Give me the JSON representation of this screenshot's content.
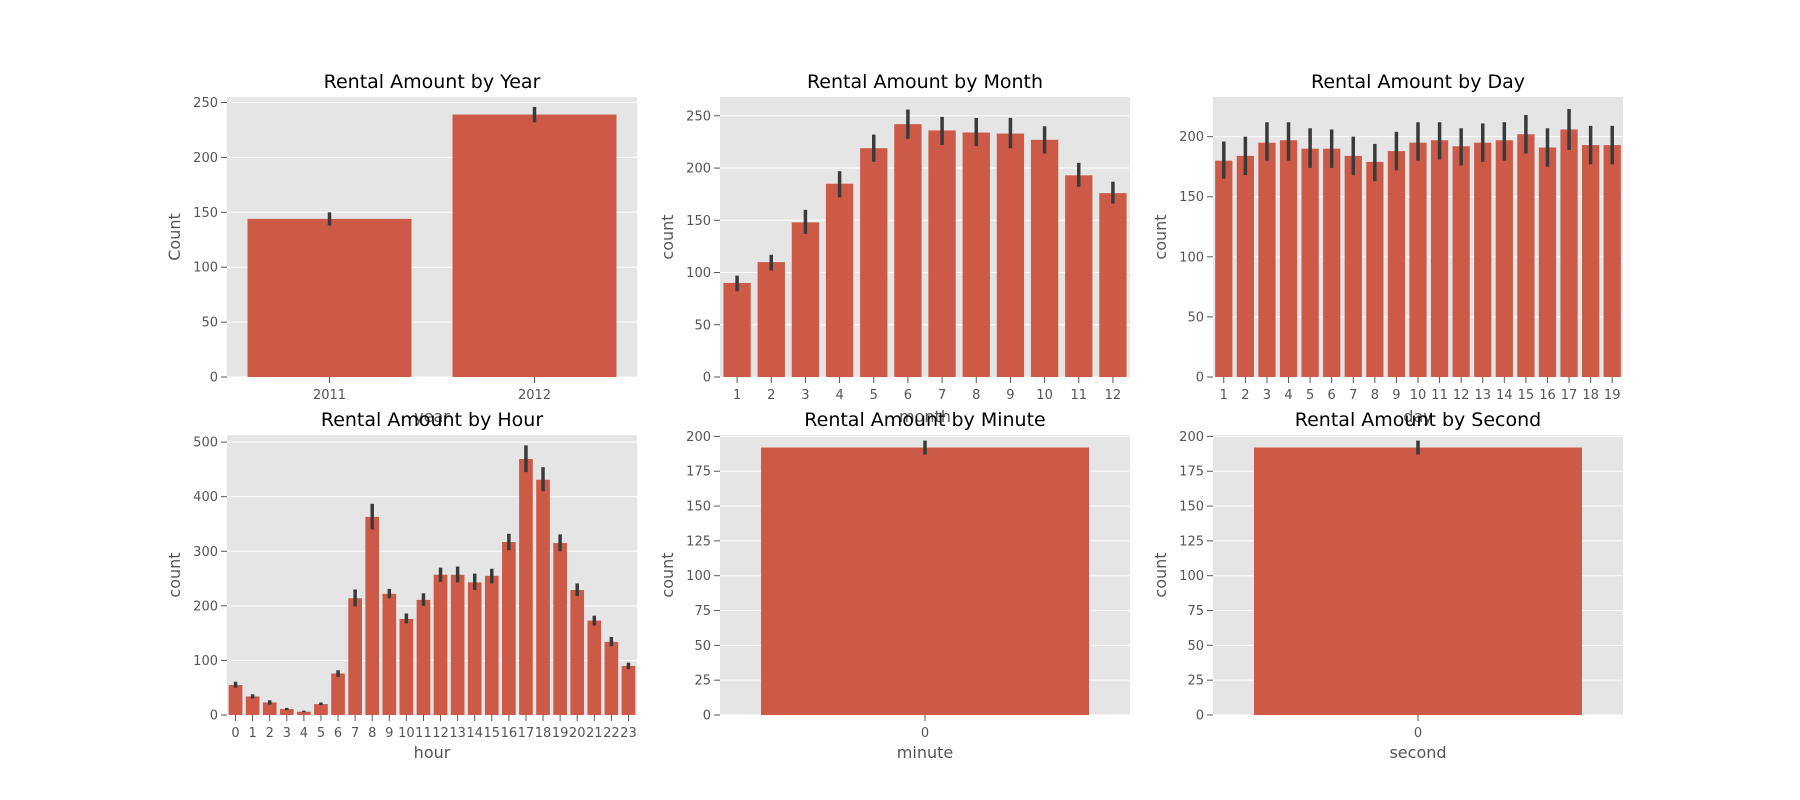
{
  "figure": {
    "background": "#ffffff",
    "plot_background": "#e5e5e5",
    "grid_color": "#ffffff",
    "bar_color": "#cc5a47",
    "errorbar_color": "#3a3a3a"
  },
  "chart_data": [
    {
      "type": "bar",
      "title": "Rental Amount by Year",
      "xlabel": "year",
      "ylabel": "Count",
      "categories": [
        "2011",
        "2012"
      ],
      "values": [
        144,
        239
      ],
      "errors": [
        [
          138,
          150
        ],
        [
          232,
          246
        ]
      ],
      "ylim": [
        0,
        255
      ],
      "yticks": [
        0,
        50,
        100,
        150,
        200,
        250
      ],
      "grid": true
    },
    {
      "type": "bar",
      "title": "Rental Amount by Month",
      "xlabel": "month",
      "ylabel": "count",
      "categories": [
        "1",
        "2",
        "3",
        "4",
        "5",
        "6",
        "7",
        "8",
        "9",
        "10",
        "11",
        "12"
      ],
      "values": [
        90,
        110,
        148,
        185,
        219,
        242,
        236,
        234,
        233,
        227,
        193,
        176
      ],
      "errors": [
        [
          82,
          97
        ],
        [
          102,
          117
        ],
        [
          137,
          160
        ],
        [
          172,
          197
        ],
        [
          206,
          232
        ],
        [
          228,
          256
        ],
        [
          222,
          249
        ],
        [
          221,
          248
        ],
        [
          219,
          248
        ],
        [
          214,
          240
        ],
        [
          182,
          205
        ],
        [
          166,
          187
        ]
      ],
      "ylim": [
        0,
        268
      ],
      "yticks": [
        0,
        50,
        100,
        150,
        200,
        250
      ],
      "grid": true
    },
    {
      "type": "bar",
      "title": "Rental Amount by Day",
      "xlabel": "day",
      "ylabel": "count",
      "categories": [
        "1",
        "2",
        "3",
        "4",
        "5",
        "6",
        "7",
        "8",
        "9",
        "10",
        "11",
        "12",
        "13",
        "14",
        "15",
        "16",
        "17",
        "18",
        "19"
      ],
      "values": [
        180,
        184,
        195,
        197,
        190,
        190,
        184,
        179,
        188,
        195,
        197,
        192,
        195,
        197,
        202,
        191,
        206,
        193,
        193
      ],
      "errors": [
        [
          165,
          196
        ],
        [
          168,
          200
        ],
        [
          180,
          212
        ],
        [
          180,
          212
        ],
        [
          174,
          207
        ],
        [
          174,
          206
        ],
        [
          168,
          200
        ],
        [
          163,
          194
        ],
        [
          172,
          204
        ],
        [
          180,
          212
        ],
        [
          181,
          212
        ],
        [
          176,
          207
        ],
        [
          179,
          211
        ],
        [
          180,
          212
        ],
        [
          186,
          218
        ],
        [
          175,
          207
        ],
        [
          189,
          223
        ],
        [
          177,
          209
        ],
        [
          177,
          209
        ]
      ],
      "ylim": [
        0,
        233
      ],
      "yticks": [
        0,
        50,
        100,
        150,
        200
      ],
      "grid": true
    },
    {
      "type": "bar",
      "title": "Rental Amount by Hour",
      "xlabel": "hour",
      "ylabel": "count",
      "categories": [
        "0",
        "1",
        "2",
        "3",
        "4",
        "5",
        "6",
        "7",
        "8",
        "9",
        "10",
        "11",
        "12",
        "13",
        "14",
        "15",
        "16",
        "17",
        "18",
        "19",
        "20",
        "21",
        "22",
        "23"
      ],
      "values": [
        55,
        34,
        23,
        11,
        6,
        20,
        76,
        214,
        363,
        222,
        176,
        211,
        257,
        257,
        243,
        255,
        317,
        469,
        431,
        315,
        229,
        173,
        134,
        90
      ],
      "errors": [
        [
          50,
          61
        ],
        [
          30,
          38
        ],
        [
          19,
          27
        ],
        [
          9,
          13
        ],
        [
          5,
          8
        ],
        [
          18,
          23
        ],
        [
          70,
          82
        ],
        [
          199,
          230
        ],
        [
          340,
          387
        ],
        [
          214,
          231
        ],
        [
          168,
          186
        ],
        [
          200,
          223
        ],
        [
          244,
          270
        ],
        [
          243,
          272
        ],
        [
          229,
          259
        ],
        [
          241,
          268
        ],
        [
          302,
          332
        ],
        [
          445,
          494
        ],
        [
          410,
          454
        ],
        [
          300,
          331
        ],
        [
          218,
          241
        ],
        [
          164,
          182
        ],
        [
          126,
          143
        ],
        [
          84,
          96
        ]
      ],
      "ylim": [
        0,
        513
      ],
      "yticks": [
        0,
        100,
        200,
        300,
        400,
        500
      ],
      "grid": true
    },
    {
      "type": "bar",
      "title": "Rental Amount by Minute",
      "xlabel": "minute",
      "ylabel": "count",
      "categories": [
        "0"
      ],
      "values": [
        192
      ],
      "errors": [
        [
          187,
          197
        ]
      ],
      "ylim": [
        0,
        201
      ],
      "yticks": [
        0,
        25,
        50,
        75,
        100,
        125,
        150,
        175,
        200
      ],
      "grid": true
    },
    {
      "type": "bar",
      "title": "Rental Amount by Second",
      "xlabel": "second",
      "ylabel": "count",
      "categories": [
        "0"
      ],
      "values": [
        192
      ],
      "errors": [
        [
          187,
          197
        ]
      ],
      "ylim": [
        0,
        201
      ],
      "yticks": [
        0,
        25,
        50,
        75,
        100,
        125,
        150,
        175,
        200
      ],
      "grid": true
    }
  ]
}
